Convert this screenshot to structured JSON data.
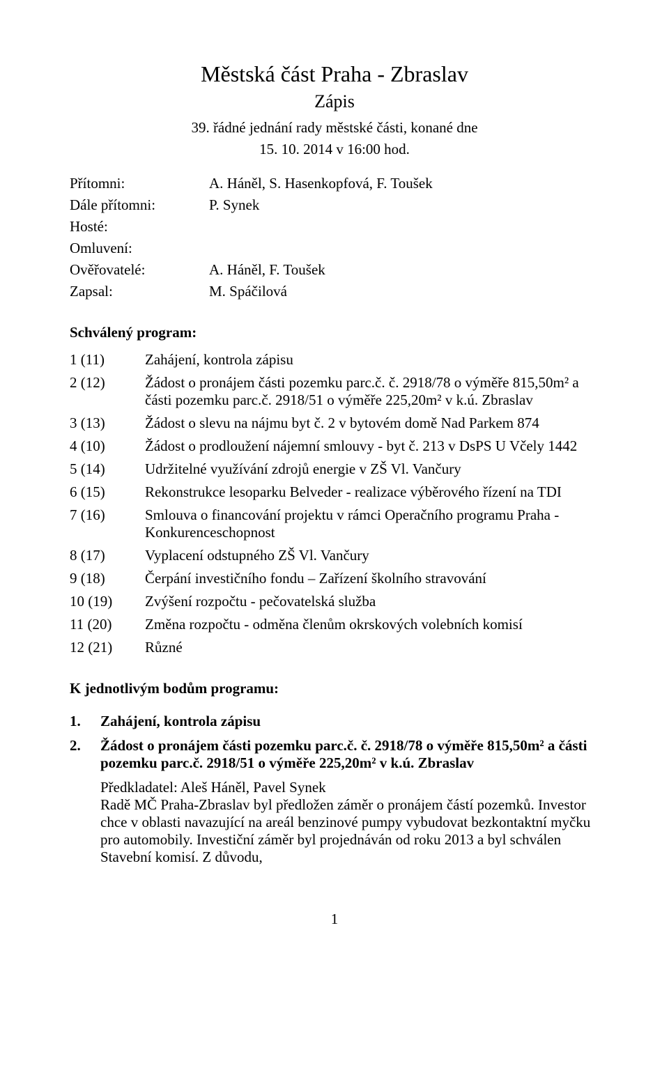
{
  "header": {
    "title_main": "Městská část Praha - Zbraslav",
    "title_sub": "Zápis",
    "meeting_line1": "39. řádné jednání rady městské části, konané dne",
    "meeting_line2": "15. 10. 2014 v 16:00 hod."
  },
  "attendance": [
    {
      "label": "Přítomni:",
      "value": "A. Háněl, S. Hasenkopfová, F. Toušek"
    },
    {
      "label": "Dále přítomni:",
      "value": "P. Synek"
    },
    {
      "label": "Hosté:",
      "value": ""
    },
    {
      "label": "Omluvení:",
      "value": ""
    },
    {
      "label": "Ověřovatelé:",
      "value": "A. Háněl, F. Toušek"
    },
    {
      "label": "Zapsal:",
      "value": "M. Spáčilová"
    }
  ],
  "agenda_heading": "Schválený program:",
  "agenda": [
    {
      "num": "1 (11)",
      "text": "Zahájení, kontrola zápisu"
    },
    {
      "num": "2 (12)",
      "text": "Žádost o pronájem části pozemku parc.č. č. 2918/78 o výměře 815,50m² a části pozemku parc.č. 2918/51 o výměře 225,20m² v k.ú. Zbraslav"
    },
    {
      "num": "3 (13)",
      "text": "Žádost o slevu na nájmu byt č. 2 v bytovém domě Nad Parkem 874"
    },
    {
      "num": "4 (10)",
      "text": "Žádost o prodloužení nájemní smlouvy - byt č. 213 v DsPS U Včely 1442"
    },
    {
      "num": "5 (14)",
      "text": "Udržitelné využívání zdrojů energie v ZŠ Vl. Vančury"
    },
    {
      "num": "6 (15)",
      "text": "Rekonstrukce lesoparku Belveder - realizace výběrového řízení na TDI"
    },
    {
      "num": "7 (16)",
      "text": "Smlouva o financování projektu v rámci Operačního programu Praha - Konkurenceschopnost"
    },
    {
      "num": "8 (17)",
      "text": "Vyplacení odstupného ZŠ Vl. Vančury"
    },
    {
      "num": "9 (18)",
      "text": "Čerpání investičního fondu – Zařízení školního stravování"
    },
    {
      "num": "10 (19)",
      "text": "Zvýšení rozpočtu - pečovatelská služba"
    },
    {
      "num": "11 (20)",
      "text": "Změna rozpočtu - odměna členům okrskových volebních komisí"
    },
    {
      "num": "12 (21)",
      "text": "Různé"
    }
  ],
  "details_heading": "K jednotlivým bodům programu:",
  "details": [
    {
      "num": "1.",
      "title": "Zahájení, kontrola zápisu",
      "body": ""
    },
    {
      "num": "2.",
      "title": "Žádost o pronájem části pozemku parc.č. č. 2918/78 o výměře 815,50m² a části pozemku parc.č. 2918/51 o výměře 225,20m² v k.ú. Zbraslav",
      "body": "Předkladatel: Aleš Háněl, Pavel Synek\nRadě MČ Praha-Zbraslav byl předložen záměr o pronájem částí pozemků. Investor chce v oblasti navazující na areál benzinové pumpy vybudovat bezkontaktní myčku pro automobily. Investiční záměr byl projednáván od roku 2013 a byl schválen Stavební komisí. Z důvodu,"
    }
  ],
  "page_number": "1"
}
